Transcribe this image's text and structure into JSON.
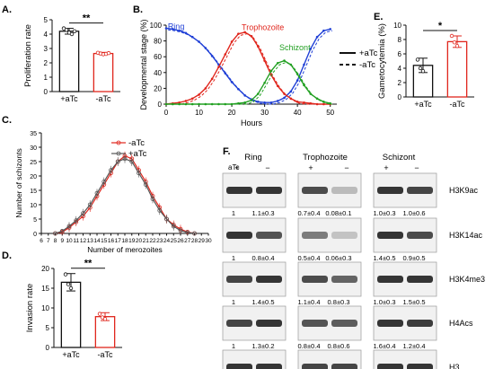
{
  "colors": {
    "black": "#111111",
    "red": "#e0261d",
    "blue": "#1f3fd6",
    "green": "#22a022",
    "gray": "#8a8a8a",
    "blot_dark": "#2a2a2a"
  },
  "chart_data": [
    {
      "panel": "A.",
      "type": "bar",
      "ylabel": "Proliferation rate",
      "categories": [
        "+aTc",
        "-aTc"
      ],
      "values": [
        4.2,
        2.65
      ],
      "errors": [
        0.2,
        0.08
      ],
      "points": [
        [
          4.4,
          4.3,
          4.1,
          4.0,
          4.2
        ],
        [
          2.7,
          2.65,
          2.6,
          2.62,
          2.68
        ]
      ],
      "ylim": [
        0,
        5
      ],
      "yticks": [
        "0",
        "1",
        "2",
        "3",
        "4",
        "5"
      ],
      "significance": "**",
      "bar_colors": [
        "#111111",
        "#e0261d"
      ]
    },
    {
      "panel": "B.",
      "type": "line",
      "xlabel": "Hours",
      "ylabel": "Developmental stage (%)",
      "xlim": [
        0,
        52
      ],
      "ylim": [
        0,
        100
      ],
      "xticks": [
        "0",
        "10",
        "20",
        "30",
        "40",
        "50"
      ],
      "yticks": [
        "0",
        "20",
        "40",
        "60",
        "80",
        "100"
      ],
      "series": [
        {
          "name": "Ring",
          "color": "#1f3fd6",
          "x": [
            0,
            2,
            4,
            6,
            8,
            10,
            12,
            14,
            16,
            18,
            20,
            22,
            24,
            26,
            28,
            30,
            32,
            34,
            36,
            38,
            40,
            42,
            44,
            46,
            48,
            50
          ],
          "y": [
            96,
            95,
            93,
            90,
            85,
            79,
            71,
            61,
            50,
            39,
            28,
            19,
            11,
            6,
            3,
            2,
            2,
            4,
            8,
            16,
            30,
            50,
            70,
            85,
            93,
            95
          ]
        },
        {
          "name": "Trophozoite",
          "color": "#e0261d",
          "x": [
            0,
            2,
            4,
            6,
            8,
            10,
            12,
            14,
            16,
            18,
            20,
            22,
            24,
            26,
            28,
            30,
            32,
            34,
            36,
            38,
            40,
            42,
            44,
            46,
            48,
            50
          ],
          "y": [
            0,
            1,
            2,
            4,
            7,
            12,
            20,
            32,
            47,
            63,
            79,
            89,
            91,
            86,
            73,
            55,
            37,
            23,
            13,
            7,
            3,
            2,
            1,
            0,
            0,
            0
          ]
        },
        {
          "name": "Schizont",
          "color": "#22a022",
          "x": [
            0,
            2,
            4,
            6,
            8,
            10,
            12,
            14,
            16,
            18,
            20,
            22,
            24,
            26,
            28,
            30,
            32,
            34,
            36,
            38,
            40,
            42,
            44,
            46,
            48,
            50
          ],
          "y": [
            0,
            0,
            0,
            0,
            0,
            0,
            0,
            0,
            0,
            0,
            0,
            1,
            2,
            5,
            13,
            27,
            42,
            52,
            55,
            50,
            38,
            24,
            13,
            7,
            3,
            1
          ]
        }
      ],
      "legend": [
        {
          "label": "+aTc",
          "style": "solid"
        },
        {
          "label": "-aTc",
          "style": "dashed"
        }
      ]
    },
    {
      "panel": "C.",
      "type": "line",
      "xlabel": "Number of merozoites",
      "ylabel": "Number of schizonts",
      "xlim": [
        6,
        30
      ],
      "ylim": [
        0,
        35
      ],
      "xticks": [
        "6",
        "7",
        "8",
        "9",
        "10",
        "11",
        "12",
        "13",
        "14",
        "15",
        "16",
        "17",
        "18",
        "19",
        "20",
        "21",
        "22",
        "23",
        "24",
        "25",
        "26",
        "27",
        "28",
        "29",
        "30"
      ],
      "yticks": [
        "0",
        "5",
        "10",
        "15",
        "20",
        "25",
        "30",
        "35"
      ],
      "series": [
        {
          "name": "-aTc",
          "color": "#e0261d",
          "x": [
            8,
            9,
            10,
            11,
            12,
            13,
            14,
            15,
            16,
            17,
            18,
            19,
            20,
            21,
            22,
            23,
            24,
            25,
            26,
            27,
            28
          ],
          "y": [
            0,
            0.5,
            2,
            4,
            6,
            9,
            13,
            17,
            21,
            25,
            27,
            26,
            22,
            18,
            13,
            9,
            5,
            3,
            1.5,
            0.5,
            0
          ]
        },
        {
          "name": "+aTc",
          "color": "#555555",
          "x": [
            8,
            9,
            10,
            11,
            12,
            13,
            14,
            15,
            16,
            17,
            18,
            19,
            20,
            21,
            22,
            23,
            24,
            25,
            26,
            27,
            28
          ],
          "y": [
            0,
            0.8,
            2.5,
            4.5,
            7,
            10,
            14,
            18,
            22,
            25,
            26,
            25,
            21,
            17,
            12,
            8,
            5,
            2.5,
            1,
            0.3,
            0
          ]
        }
      ]
    },
    {
      "panel": "D.",
      "type": "bar",
      "ylabel": "Invasion rate",
      "categories": [
        "+aTc",
        "-aTc"
      ],
      "values": [
        16.5,
        7.8
      ],
      "errors": [
        2.2,
        1.0
      ],
      "points": [
        [
          18.5,
          16.0,
          15.0
        ],
        [
          8.5,
          7.6,
          7.2
        ]
      ],
      "ylim": [
        0,
        20
      ],
      "yticks": [
        "0",
        "5",
        "10",
        "15",
        "20"
      ],
      "significance": "**",
      "bar_colors": [
        "#111111",
        "#e0261d"
      ]
    },
    {
      "panel": "E.",
      "type": "bar",
      "ylabel": "Gametocytemia (%)",
      "categories": [
        "+aTc",
        "-aTc"
      ],
      "values": [
        4.4,
        7.7
      ],
      "errors": [
        1.0,
        0.8
      ],
      "points": [
        [
          5.2,
          4.0,
          3.6
        ],
        [
          8.5,
          7.6,
          7.1
        ]
      ],
      "ylim": [
        0,
        10
      ],
      "yticks": [
        "0",
        "2",
        "4",
        "6",
        "8",
        "10"
      ],
      "significance": "*",
      "bar_colors": [
        "#111111",
        "#e0261d"
      ]
    }
  ],
  "blot": {
    "panel": "F.",
    "atc_label": "aTc",
    "groups": [
      "Ring",
      "Trophozoite",
      "Schizont"
    ],
    "treatments": [
      "+",
      "−"
    ],
    "rows": [
      {
        "label": "H3K9ac",
        "values": [
          "1",
          "1.1±0.3",
          "0.7±0.4",
          "0.08±0.1",
          "1.0±0.3",
          "1.0±0.6"
        ],
        "intensity": [
          1.0,
          1.0,
          0.85,
          0.15,
          1.0,
          0.9
        ]
      },
      {
        "label": "H3K14ac",
        "values": [
          "1",
          "0.8±0.4",
          "0.5±0.4",
          "0.06±0.3",
          "1.4±0.5",
          "0.9±0.5"
        ],
        "intensity": [
          1.0,
          0.8,
          0.55,
          0.1,
          1.0,
          0.85
        ]
      },
      {
        "label": "H3K4me3",
        "values": [
          "1",
          "1.4±0.5",
          "1.1±0.4",
          "0.8±0.3",
          "1.0±0.3",
          "1.5±0.5"
        ],
        "intensity": [
          0.9,
          1.0,
          0.85,
          0.7,
          1.0,
          1.0
        ]
      },
      {
        "label": "H4Acs",
        "values": [
          "1",
          "1.3±0.2",
          "0.8±0.4",
          "0.8±0.6",
          "1.6±0.4",
          "1.2±0.4"
        ],
        "intensity": [
          0.9,
          1.0,
          0.8,
          0.75,
          1.0,
          0.95
        ]
      },
      {
        "label": "H3",
        "values": [],
        "intensity": [
          1.0,
          1.0,
          0.9,
          0.9,
          1.0,
          1.0
        ]
      }
    ]
  }
}
